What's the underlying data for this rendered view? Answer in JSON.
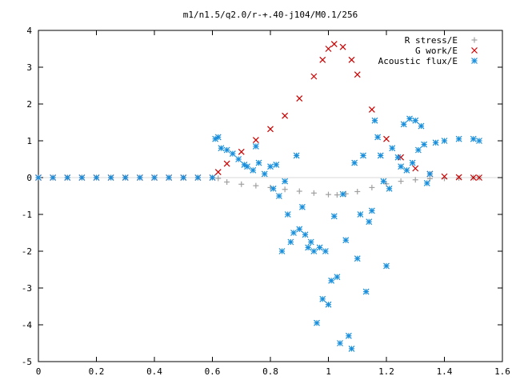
{
  "chart_data": {
    "type": "scatter",
    "title": "m1/n1.5/q2.0/r-+.40-j104/M0.1/256",
    "xlabel": "",
    "ylabel": "",
    "xlim": [
      0,
      1.6
    ],
    "ylim": [
      -5,
      4
    ],
    "xticks": [
      "0",
      "0.2",
      "0.4",
      "0.6",
      "0.8",
      "1",
      "1.2",
      "1.4",
      "1.6"
    ],
    "yticks": [
      "4",
      "3",
      "2",
      "1",
      "0",
      "-1",
      "-2",
      "-3",
      "-4",
      "-5"
    ],
    "grid": false,
    "legend_position": "top-right",
    "series": [
      {
        "name": "R stress/E",
        "color": "#a0a0a0",
        "marker": "plus",
        "x": [
          0.0,
          0.05,
          0.1,
          0.15,
          0.2,
          0.25,
          0.3,
          0.35,
          0.4,
          0.45,
          0.5,
          0.55,
          0.6,
          0.62,
          0.65,
          0.7,
          0.75,
          0.8,
          0.85,
          0.9,
          0.95,
          1.0,
          1.03,
          1.06,
          1.1,
          1.15,
          1.2,
          1.25,
          1.3,
          1.35,
          1.4,
          1.45,
          1.5,
          1.52
        ],
        "y": [
          0,
          0,
          0,
          0,
          0,
          0,
          0,
          0,
          0,
          0,
          0,
          0,
          0,
          -0.02,
          -0.12,
          -0.18,
          -0.22,
          -0.27,
          -0.32,
          -0.37,
          -0.42,
          -0.46,
          -0.47,
          -0.44,
          -0.38,
          -0.27,
          -0.17,
          -0.1,
          -0.06,
          -0.03,
          -0.02,
          -0.01,
          0,
          0
        ]
      },
      {
        "name": "G work/E",
        "color": "#cc0000",
        "marker": "cross",
        "x": [
          0.0,
          0.05,
          0.1,
          0.15,
          0.2,
          0.25,
          0.3,
          0.35,
          0.4,
          0.45,
          0.5,
          0.55,
          0.6,
          0.62,
          0.65,
          0.7,
          0.75,
          0.8,
          0.85,
          0.9,
          0.95,
          0.98,
          1.0,
          1.02,
          1.05,
          1.08,
          1.1,
          1.15,
          1.2,
          1.25,
          1.3,
          1.35,
          1.4,
          1.45,
          1.5,
          1.52
        ],
        "y": [
          0,
          0,
          0,
          0,
          0,
          0,
          0,
          0,
          0,
          0,
          0,
          0,
          0,
          0.15,
          0.38,
          0.7,
          1.02,
          1.32,
          1.68,
          2.15,
          2.75,
          3.2,
          3.5,
          3.63,
          3.55,
          3.2,
          2.8,
          1.85,
          1.05,
          0.55,
          0.25,
          0.1,
          0.03,
          0.01,
          0,
          0
        ]
      },
      {
        "name": "Acoustic flux/E",
        "color": "#1a8fdc",
        "marker": "star",
        "x": [
          0.0,
          0.05,
          0.1,
          0.15,
          0.2,
          0.25,
          0.3,
          0.35,
          0.4,
          0.45,
          0.5,
          0.55,
          0.6,
          0.61,
          0.62,
          0.63,
          0.65,
          0.67,
          0.69,
          0.71,
          0.72,
          0.74,
          0.75,
          0.76,
          0.78,
          0.8,
          0.81,
          0.82,
          0.83,
          0.84,
          0.85,
          0.86,
          0.87,
          0.88,
          0.89,
          0.9,
          0.91,
          0.92,
          0.93,
          0.94,
          0.95,
          0.96,
          0.97,
          0.98,
          0.99,
          1.0,
          1.01,
          1.02,
          1.03,
          1.04,
          1.05,
          1.06,
          1.07,
          1.08,
          1.09,
          1.1,
          1.11,
          1.12,
          1.13,
          1.14,
          1.15,
          1.16,
          1.17,
          1.18,
          1.19,
          1.2,
          1.21,
          1.22,
          1.24,
          1.25,
          1.26,
          1.27,
          1.28,
          1.29,
          1.3,
          1.31,
          1.32,
          1.33,
          1.34,
          1.35,
          1.37,
          1.4,
          1.45,
          1.5,
          1.52
        ],
        "y": [
          0,
          0,
          0,
          0,
          0,
          0,
          0,
          0,
          0,
          0,
          0,
          0,
          0,
          1.05,
          1.1,
          0.8,
          0.75,
          0.65,
          0.5,
          0.35,
          0.3,
          0.2,
          0.85,
          0.4,
          0.1,
          0.3,
          -0.3,
          0.35,
          -0.5,
          -2.0,
          -0.1,
          -1.0,
          -1.75,
          -1.5,
          0.6,
          -1.4,
          -0.8,
          -1.55,
          -1.9,
          -1.75,
          -2.0,
          -3.95,
          -1.9,
          -3.3,
          -2.0,
          -3.45,
          -2.8,
          -1.05,
          -2.7,
          -4.5,
          -0.45,
          -1.7,
          -4.3,
          -4.65,
          0.4,
          -2.2,
          -1.0,
          0.6,
          -3.1,
          -1.2,
          -0.9,
          1.55,
          1.1,
          0.6,
          -0.1,
          -2.4,
          -0.3,
          0.8,
          0.55,
          0.3,
          1.45,
          0.2,
          1.6,
          0.4,
          1.55,
          0.75,
          1.4,
          0.9,
          -0.15,
          0.1,
          0.95,
          1.0,
          1.05,
          1.05,
          1.0
        ]
      }
    ]
  }
}
